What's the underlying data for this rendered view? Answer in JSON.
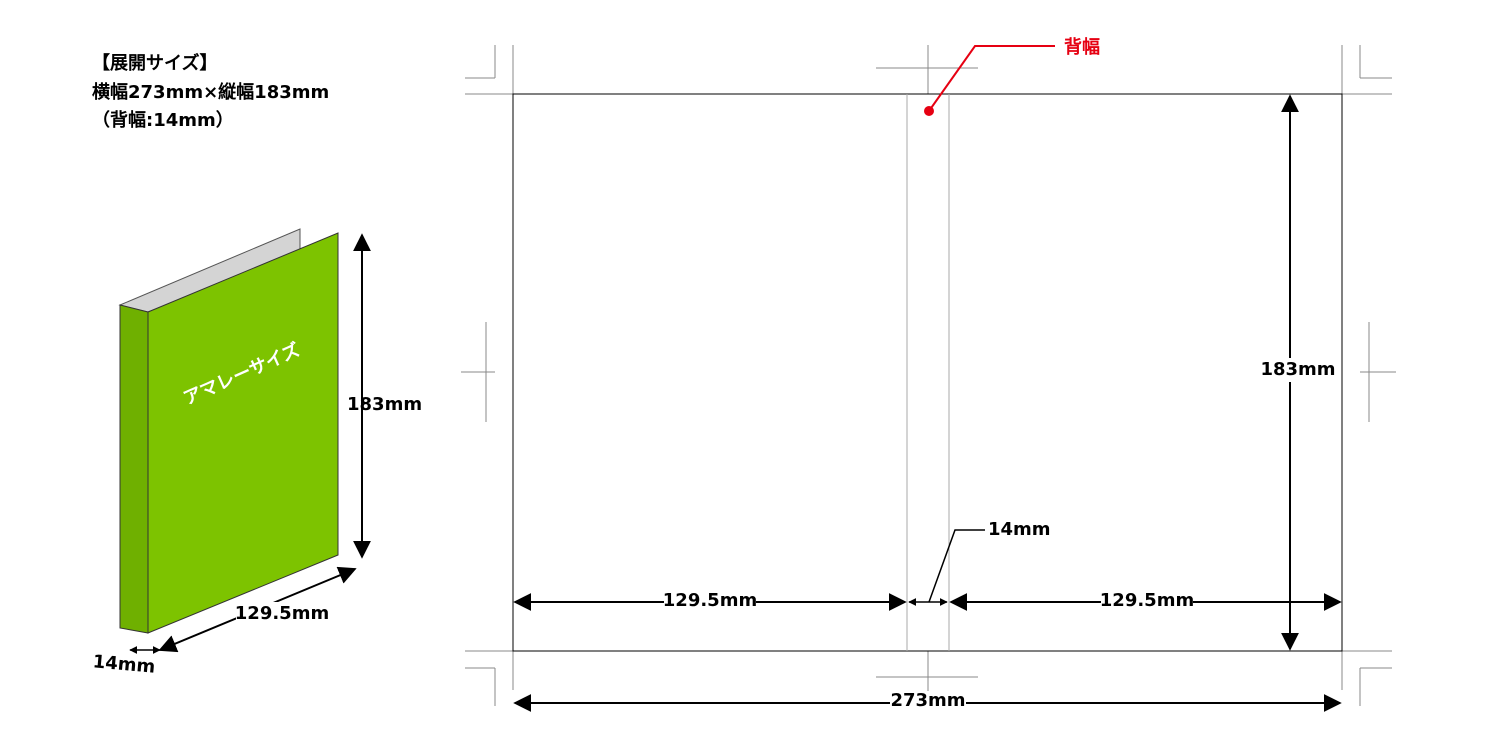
{
  "header": {
    "title": "【展開サイズ】",
    "size": "横幅273mm×縦幅183mm",
    "spine": "（背幅:14mm）"
  },
  "binder": {
    "label": "アマレーサイズ",
    "height": "183mm",
    "width": "129.5mm",
    "spine": "14mm"
  },
  "layout": {
    "spine_callout": "背幅",
    "height": "183mm",
    "spine": "14mm",
    "left_width": "129.5mm",
    "right_width": "129.5mm",
    "total_width": "273mm"
  }
}
